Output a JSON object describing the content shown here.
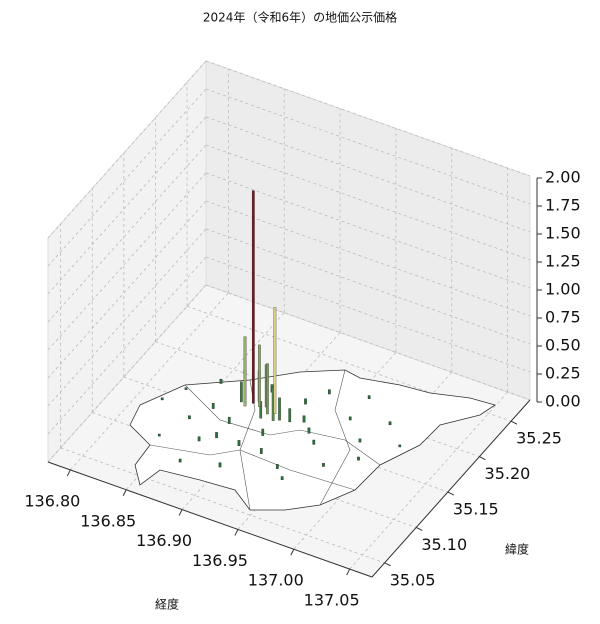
{
  "chart_data": {
    "type": "bar3d",
    "title": "2024年（令和6年）の地価公示価格",
    "xlabel": "経度",
    "ylabel": "緯度",
    "xlim": [
      136.78,
      137.07
    ],
    "ylim": [
      35.03,
      35.28
    ],
    "zlim": [
      0,
      2.0
    ],
    "xticks": [
      {
        "value": 136.8,
        "label": "136.80"
      },
      {
        "value": 136.85,
        "label": "136.85"
      },
      {
        "value": 136.9,
        "label": "136.90"
      },
      {
        "value": 136.95,
        "label": "136.95"
      },
      {
        "value": 137.0,
        "label": "137.00"
      },
      {
        "value": 137.05,
        "label": "137.05"
      }
    ],
    "yticks": [
      {
        "value": 35.05,
        "label": "35.05"
      },
      {
        "value": 35.1,
        "label": "35.10"
      },
      {
        "value": 35.15,
        "label": "35.15"
      },
      {
        "value": 35.2,
        "label": "35.20"
      },
      {
        "value": 35.25,
        "label": "35.25"
      }
    ],
    "zticks": [
      {
        "value": 0,
        "label": "0.00"
      },
      {
        "value": 0.25,
        "label": "0.25"
      },
      {
        "value": 0.5,
        "label": "0.50"
      },
      {
        "value": 0.75,
        "label": "0.75"
      },
      {
        "value": 1.0,
        "label": "1.00"
      },
      {
        "value": 1.25,
        "label": "1.25"
      },
      {
        "value": 1.5,
        "label": "1.50"
      },
      {
        "value": 1.75,
        "label": "1.75"
      },
      {
        "value": 2.0,
        "label": "2.00"
      }
    ],
    "grid": true,
    "colormap": [
      "#1e6b35",
      "#e6d58a",
      "#6b0012"
    ],
    "x": [
      136.96,
      136.99,
      137.01,
      136.93,
      136.86,
      136.83,
      136.85,
      136.92,
      136.95,
      136.97,
      136.88,
      136.84,
      136.87,
      136.94,
      136.98,
      136.9,
      136.82,
      136.86,
      136.91,
      136.96,
      136.89,
      136.93,
      136.99,
      136.85,
      136.92,
      136.88,
      136.95,
      136.87,
      136.9,
      136.94,
      136.92,
      136.898,
      136.875,
      136.912,
      136.887,
      136.908,
      136.895,
      136.9,
      136.89,
      136.88,
      136.905,
      136.884
    ],
    "y": [
      35.22,
      35.2,
      35.18,
      35.21,
      35.2,
      35.16,
      35.13,
      35.19,
      35.15,
      35.13,
      35.12,
      35.1,
      35.08,
      35.11,
      35.17,
      35.09,
      35.14,
      35.15,
      35.14,
      35.19,
      35.19,
      35.17,
      35.15,
      35.18,
      35.12,
      35.14,
      35.1,
      35.11,
      35.12,
      35.16,
      35.165,
      35.158,
      35.168,
      35.163,
      35.175,
      35.16,
      35.172,
      35.165,
      35.17,
      35.165,
      35.168,
      35.171
    ],
    "values": [
      0.03,
      0.03,
      0.02,
      0.04,
      0.03,
      0.02,
      0.03,
      0.05,
      0.04,
      0.03,
      0.05,
      0.02,
      0.03,
      0.04,
      0.03,
      0.04,
      0.02,
      0.05,
      0.06,
      0.03,
      0.07,
      0.06,
      0.03,
      0.04,
      0.05,
      0.06,
      0.03,
      0.04,
      0.05,
      0.05,
      0.12,
      0.15,
      0.18,
      0.2,
      0.28,
      0.3,
      0.38,
      0.45,
      0.55,
      0.62,
      0.95,
      1.9
    ]
  }
}
